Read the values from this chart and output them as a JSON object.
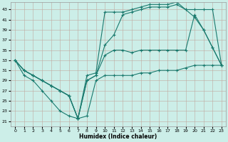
{
  "xlabel": "Humidex (Indice chaleur)",
  "bg_color": "#cceee8",
  "grid_color": "#b0d8d0",
  "line_color": "#1a7a6e",
  "xlim": [
    -0.5,
    23.5
  ],
  "ylim": [
    20,
    44.5
  ],
  "xticks": [
    0,
    1,
    2,
    3,
    4,
    5,
    6,
    7,
    8,
    9,
    10,
    11,
    12,
    13,
    14,
    15,
    16,
    17,
    18,
    19,
    20,
    21,
    22,
    23
  ],
  "yticks": [
    21,
    23,
    25,
    27,
    29,
    31,
    33,
    35,
    37,
    39,
    41,
    43
  ],
  "lines": [
    {
      "x": [
        0,
        1,
        2,
        3,
        4,
        5,
        6,
        7,
        8,
        9,
        10,
        11,
        12,
        13,
        14,
        15,
        16,
        17,
        18,
        19,
        20,
        21,
        22,
        23
      ],
      "y": [
        33,
        30,
        29,
        27,
        25,
        23,
        22,
        21.5,
        22,
        29,
        30,
        30,
        30,
        30,
        30.5,
        30.5,
        31,
        31,
        31,
        31.5,
        32,
        32,
        32,
        32
      ]
    },
    {
      "x": [
        0,
        1,
        2,
        3,
        4,
        5,
        6,
        7,
        8,
        9,
        10,
        11,
        12,
        13,
        14,
        15,
        16,
        17,
        18,
        19,
        20,
        21,
        22,
        23
      ],
      "y": [
        33,
        31,
        30,
        29,
        28,
        27,
        26,
        21.5,
        29,
        30,
        34,
        35,
        35,
        34.5,
        35,
        35,
        35,
        35,
        35,
        35,
        42,
        39,
        35.5,
        32
      ]
    },
    {
      "x": [
        0,
        1,
        2,
        3,
        4,
        5,
        6,
        7,
        8,
        9,
        10,
        11,
        12,
        13,
        14,
        15,
        16,
        17,
        18,
        19,
        20,
        21,
        22,
        23
      ],
      "y": [
        33,
        31,
        30,
        29,
        28,
        27,
        26,
        21.5,
        29,
        30,
        36,
        38,
        42,
        42.5,
        43,
        43.5,
        43.5,
        43.5,
        44,
        43,
        43,
        43,
        43,
        32
      ]
    },
    {
      "x": [
        0,
        1,
        2,
        3,
        4,
        5,
        6,
        7,
        8,
        9,
        10,
        11,
        12,
        13,
        14,
        15,
        16,
        17,
        18,
        19,
        20,
        21,
        22,
        23
      ],
      "y": [
        33,
        31,
        30,
        29,
        28,
        27,
        26,
        21.5,
        30,
        30.5,
        42.5,
        42.5,
        42.5,
        43,
        43.5,
        44,
        44,
        44,
        44.5,
        43,
        41.5,
        39,
        35.5,
        32
      ]
    }
  ]
}
